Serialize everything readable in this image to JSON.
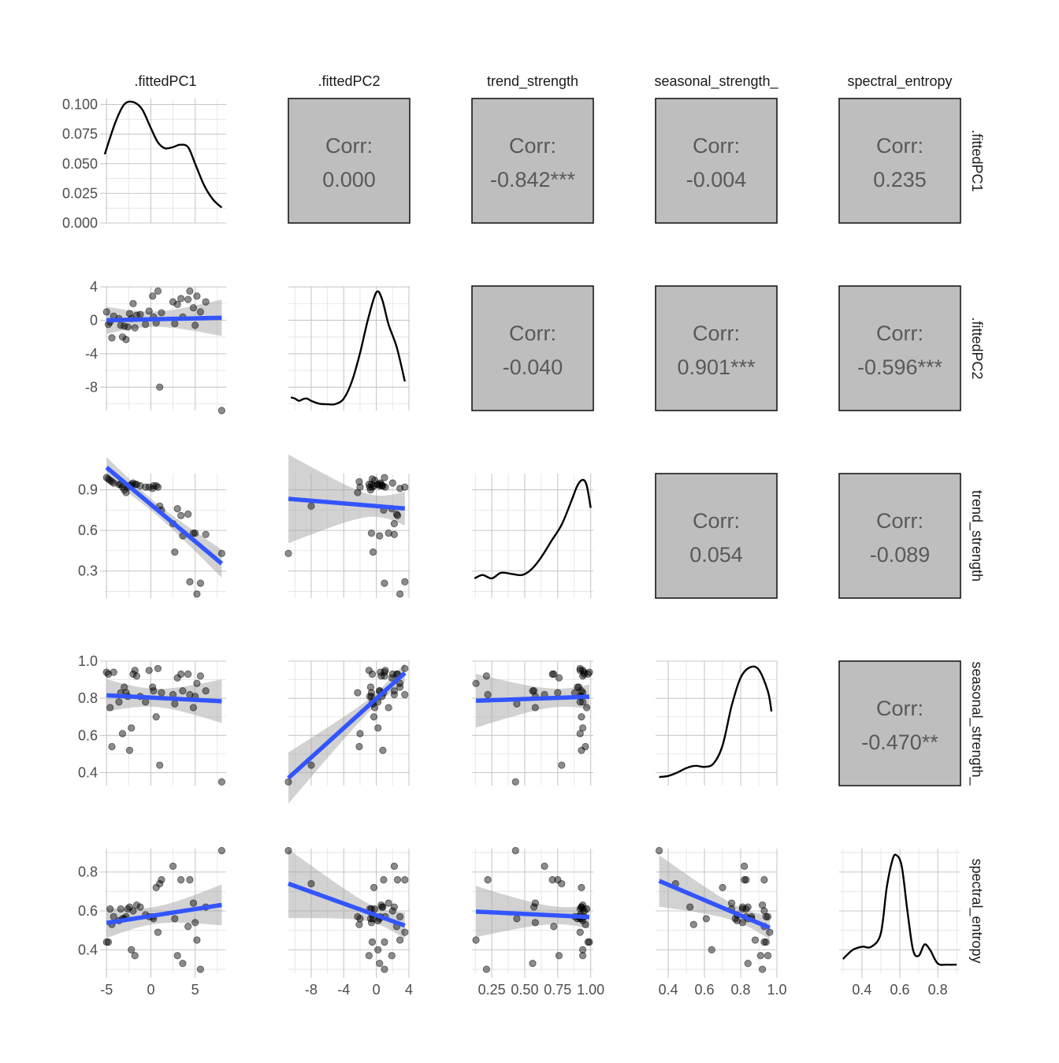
{
  "chart_data": {
    "type": "scatter",
    "title": "",
    "variables": [
      ".fittedPC1",
      ".fittedPC2",
      "trend_strength",
      "seasonal_strength_",
      "spectral_entropy"
    ],
    "row_labels": [
      ".fittedPC1",
      ".fittedPC2",
      "trend_strength",
      "seasonal_strength_",
      "spectral_entropy"
    ],
    "axes": {
      ".fittedPC1": {
        "lim": [
          -5.2,
          8.5
        ],
        "ticks": [
          -5,
          0,
          5
        ],
        "tick_labels": [
          "-5",
          "0",
          "5"
        ]
      },
      ".fittedPC2": {
        "lim": [
          -10.8,
          4.1
        ],
        "ticks": [
          -8,
          -4,
          0,
          4
        ],
        "tick_labels": [
          "-8",
          "-4",
          "0",
          "4"
        ]
      },
      "trend_strength": {
        "lim": [
          0.1,
          1.02
        ],
        "ticks": [
          0.3,
          0.6,
          0.9
        ],
        "tick_labels": [
          "0.3",
          "0.6",
          "0.9"
        ],
        "x_ticks": [
          0.25,
          0.5,
          0.75,
          1.0
        ],
        "x_tick_labels": [
          "0.25",
          "0.50",
          "0.75",
          "1.00"
        ]
      },
      "seasonal_strength_": {
        "lim": [
          0.33,
          1.0
        ],
        "ticks": [
          0.4,
          0.6,
          0.8,
          1.0
        ],
        "tick_labels": [
          "0.4",
          "0.6",
          "0.8",
          "1.0"
        ]
      },
      "spectral_entropy": {
        "lim": [
          0.28,
          0.92
        ],
        "ticks": [
          0.4,
          0.6,
          0.8
        ],
        "tick_labels": [
          "0.4",
          "0.6",
          "0.8"
        ]
      }
    },
    "density_axis_first": {
      "ticks": [
        0.0,
        0.025,
        0.05,
        0.075,
        0.1
      ],
      "tick_labels": [
        "0.000",
        "0.025",
        "0.050",
        "0.075",
        "0.100"
      ],
      "lim": [
        0,
        0.105
      ]
    },
    "correlations": [
      {
        "row": 0,
        "col": 1,
        "label": "Corr:",
        "value": "0.000"
      },
      {
        "row": 0,
        "col": 2,
        "label": "Corr:",
        "value": "-0.842***"
      },
      {
        "row": 0,
        "col": 3,
        "label": "Corr:",
        "value": "-0.004"
      },
      {
        "row": 0,
        "col": 4,
        "label": "Corr:",
        "value": "0.235"
      },
      {
        "row": 1,
        "col": 2,
        "label": "Corr:",
        "value": "-0.040"
      },
      {
        "row": 1,
        "col": 3,
        "label": "Corr:",
        "value": "0.901***"
      },
      {
        "row": 1,
        "col": 4,
        "label": "Corr:",
        "value": "-0.596***"
      },
      {
        "row": 2,
        "col": 3,
        "label": "Corr:",
        "value": "0.054"
      },
      {
        "row": 2,
        "col": 4,
        "label": "Corr:",
        "value": "-0.089"
      },
      {
        "row": 3,
        "col": 4,
        "label": "Corr:",
        "value": "-0.470**"
      }
    ],
    "densities": {
      ".fittedPC1": {
        "x": [
          -5.2,
          -4,
          -3,
          -2,
          -1,
          0,
          0.8,
          1.6,
          2.5,
          3.3,
          4.2,
          5,
          6,
          7,
          8
        ],
        "y": [
          0.058,
          0.085,
          0.1,
          0.102,
          0.096,
          0.08,
          0.068,
          0.063,
          0.064,
          0.066,
          0.064,
          0.05,
          0.032,
          0.02,
          0.013
        ]
      },
      ".fittedPC2": {
        "x": [
          -10.5,
          -10,
          -9.5,
          -9,
          -8.5,
          -8,
          -7,
          -6,
          -5,
          -4,
          -3,
          -2,
          -1,
          0,
          0.7,
          1.5,
          2.5,
          3.5
        ],
        "y": [
          0.06,
          0.05,
          0.03,
          0.045,
          0.05,
          0.03,
          0.005,
          0.0,
          0.002,
          0.05,
          0.2,
          0.45,
          0.75,
          0.98,
          0.92,
          0.7,
          0.5,
          0.2
        ]
      },
      "trend_strength": {
        "x": [
          0.12,
          0.18,
          0.25,
          0.32,
          0.4,
          0.48,
          0.55,
          0.62,
          0.7,
          0.78,
          0.85,
          0.9,
          0.94,
          0.97,
          1.0
        ],
        "y": [
          0.12,
          0.15,
          0.12,
          0.17,
          0.16,
          0.15,
          0.2,
          0.3,
          0.45,
          0.6,
          0.8,
          0.95,
          1.0,
          0.95,
          0.75
        ]
      },
      "seasonal_strength_": {
        "x": [
          0.35,
          0.4,
          0.45,
          0.5,
          0.55,
          0.6,
          0.65,
          0.7,
          0.75,
          0.8,
          0.85,
          0.9,
          0.95,
          0.97
        ],
        "y": [
          0.02,
          0.03,
          0.06,
          0.1,
          0.12,
          0.11,
          0.14,
          0.3,
          0.65,
          0.9,
          0.99,
          0.97,
          0.78,
          0.6
        ]
      },
      "spectral_entropy": {
        "x": [
          0.3,
          0.35,
          0.4,
          0.45,
          0.5,
          0.53,
          0.56,
          0.58,
          0.61,
          0.64,
          0.67,
          0.7,
          0.73,
          0.76,
          0.8,
          0.85,
          0.9
        ],
        "y": [
          0.07,
          0.15,
          0.18,
          0.18,
          0.3,
          0.7,
          0.95,
          1.0,
          0.9,
          0.5,
          0.15,
          0.1,
          0.2,
          0.15,
          0.03,
          0.02,
          0.02
        ]
      }
    },
    "observations": [
      [
        -5.0,
        1.0,
        0.99,
        0.94,
        0.44
      ],
      [
        -4.8,
        -0.5,
        0.98,
        0.93,
        0.44
      ],
      [
        -4.6,
        -0.2,
        0.97,
        0.75,
        0.61
      ],
      [
        -4.4,
        -2.1,
        0.96,
        0.54,
        0.53
      ],
      [
        -4.2,
        0.5,
        0.95,
        0.94,
        0.57
      ],
      [
        -3.6,
        0.2,
        0.94,
        0.78,
        0.55
      ],
      [
        -3.4,
        -0.6,
        0.94,
        0.83,
        0.61
      ],
      [
        -3.2,
        -2.0,
        0.92,
        0.61,
        0.56
      ],
      [
        -3.0,
        -0.7,
        0.9,
        0.86,
        0.56
      ],
      [
        -2.8,
        -2.3,
        0.88,
        0.83,
        0.57
      ],
      [
        -2.6,
        -0.8,
        0.92,
        0.81,
        0.61
      ],
      [
        -2.4,
        0.8,
        0.93,
        0.52,
        0.62
      ],
      [
        -2.2,
        0.2,
        0.94,
        0.64,
        0.4
      ],
      [
        -2.0,
        2.0,
        0.95,
        0.93,
        0.6
      ],
      [
        -1.8,
        -0.9,
        0.94,
        0.95,
        0.37
      ],
      [
        -1.6,
        0.6,
        0.94,
        0.92,
        0.63
      ],
      [
        -1.2,
        0.7,
        0.93,
        0.81,
        0.62
      ],
      [
        -0.6,
        -0.5,
        0.92,
        0.78,
        0.58
      ],
      [
        -0.2,
        1.1,
        0.92,
        0.95,
        0.57
      ],
      [
        0.2,
        2.9,
        0.91,
        0.86,
        0.57
      ],
      [
        0.3,
        0.4,
        0.93,
        0.84,
        0.56
      ],
      [
        0.6,
        -0.3,
        0.93,
        0.7,
        0.72
      ],
      [
        0.8,
        3.5,
        0.92,
        0.96,
        0.49
      ],
      [
        1.0,
        -8.0,
        0.78,
        0.44,
        0.74
      ],
      [
        1.2,
        0.9,
        0.75,
        0.83,
        0.76
      ],
      [
        2.5,
        2.2,
        0.65,
        0.82,
        0.83
      ],
      [
        2.7,
        -0.4,
        0.44,
        0.77,
        0.56
      ],
      [
        3.0,
        1.9,
        0.76,
        0.91,
        0.37
      ],
      [
        3.4,
        2.6,
        0.71,
        0.93,
        0.76
      ],
      [
        3.6,
        0.4,
        0.56,
        0.84,
        0.33
      ],
      [
        4.2,
        2.5,
        0.72,
        0.93,
        0.52
      ],
      [
        4.4,
        3.5,
        0.22,
        0.82,
        0.76
      ],
      [
        4.8,
        1.5,
        0.58,
        0.75,
        0.64
      ],
      [
        5.0,
        -0.6,
        0.58,
        0.81,
        0.54
      ],
      [
        5.2,
        2.9,
        0.13,
        0.88,
        0.45
      ],
      [
        5.6,
        1.0,
        0.21,
        0.92,
        0.3
      ],
      [
        6.2,
        2.2,
        0.57,
        0.84,
        0.62
      ],
      [
        8.0,
        -10.8,
        0.43,
        0.35,
        0.91
      ]
    ]
  }
}
